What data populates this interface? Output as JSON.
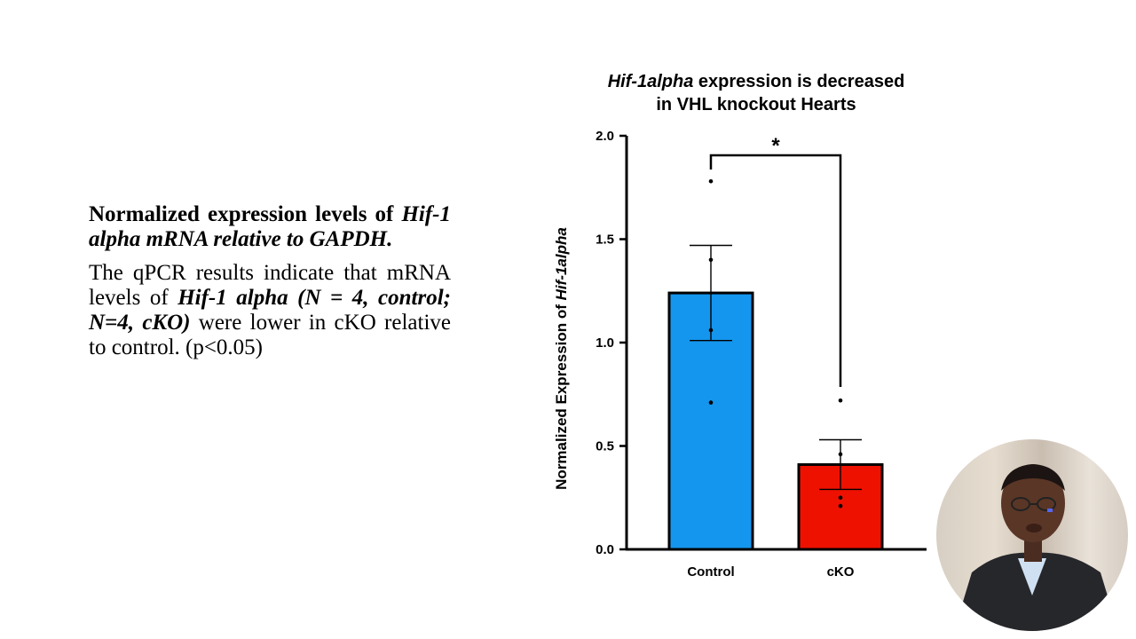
{
  "slide": {
    "heading": {
      "part1": "Normalized expression levels of ",
      "part2_italic": "Hif-1 alpha mRNA relative to GAPDH."
    },
    "body": {
      "part1": "The qPCR results indicate that mRNA levels of ",
      "part2_bold_italic": "Hif-1 alpha (N = 4, control; N=4, cKO)",
      "part3": " were lower in cKO relative to control. (p<0.05)"
    }
  },
  "colors": {
    "control_bar": "#1496ee",
    "cko_bar": "#ee1100",
    "axis": "#000000"
  },
  "chart_data": {
    "type": "bar",
    "title_italic": "Hif-1alpha",
    "title_rest_line1": " expression is decreased",
    "title_line2": "in VHL knockout Hearts",
    "ylabel_prefix": "Normalized Expression of ",
    "ylabel_italic": "Hif-1alpha",
    "xlabel": "",
    "ylim": [
      0,
      2.0
    ],
    "yticks": [
      "0.0",
      "0.5",
      "1.0",
      "1.5",
      "2.0"
    ],
    "categories": [
      "Control",
      "cKO"
    ],
    "values": [
      1.24,
      0.41
    ],
    "sem": [
      0.23,
      0.12
    ],
    "points": [
      [
        1.78,
        1.4,
        1.06,
        0.71
      ],
      [
        0.72,
        0.46,
        0.25,
        0.21
      ]
    ],
    "significance": "*"
  },
  "webcam": {
    "icon": "presenter-video-icon"
  }
}
